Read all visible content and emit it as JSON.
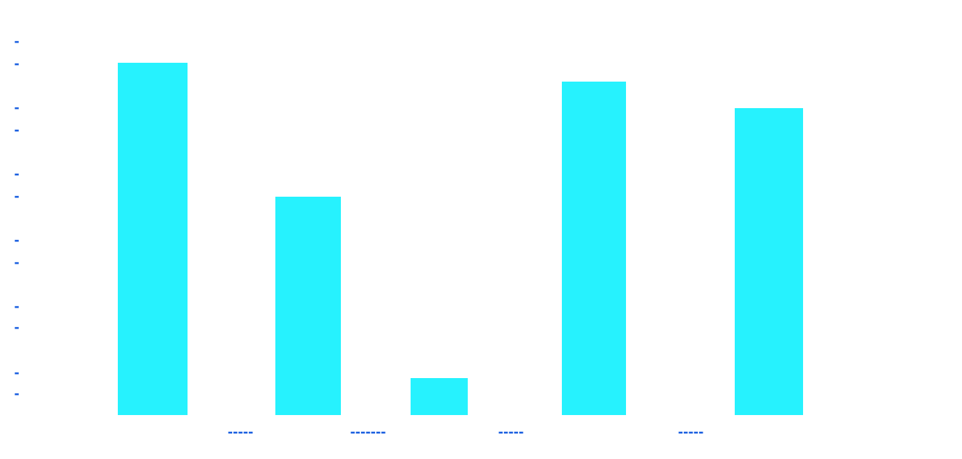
{
  "chart_data": {
    "type": "bar",
    "categories": [
      "-----",
      "-------",
      "-----",
      "-----",
      null
    ],
    "values": [
      505,
      313,
      53,
      478,
      440
    ],
    "color": "#26f2fe",
    "ylim": [
      0,
      535
    ],
    "yticks": [
      {
        "value": 30,
        "label": "-"
      },
      {
        "value": 60,
        "label": "-"
      },
      {
        "value": 125,
        "label": "-"
      },
      {
        "value": 155,
        "label": "-"
      },
      {
        "value": 218,
        "label": "-"
      },
      {
        "value": 250,
        "label": "-"
      },
      {
        "value": 313,
        "label": "-"
      },
      {
        "value": 345,
        "label": "-"
      },
      {
        "value": 408,
        "label": "-"
      },
      {
        "value": 440,
        "label": "-"
      },
      {
        "value": 503,
        "label": "-"
      },
      {
        "value": 535,
        "label": "-"
      }
    ],
    "grid": false
  }
}
